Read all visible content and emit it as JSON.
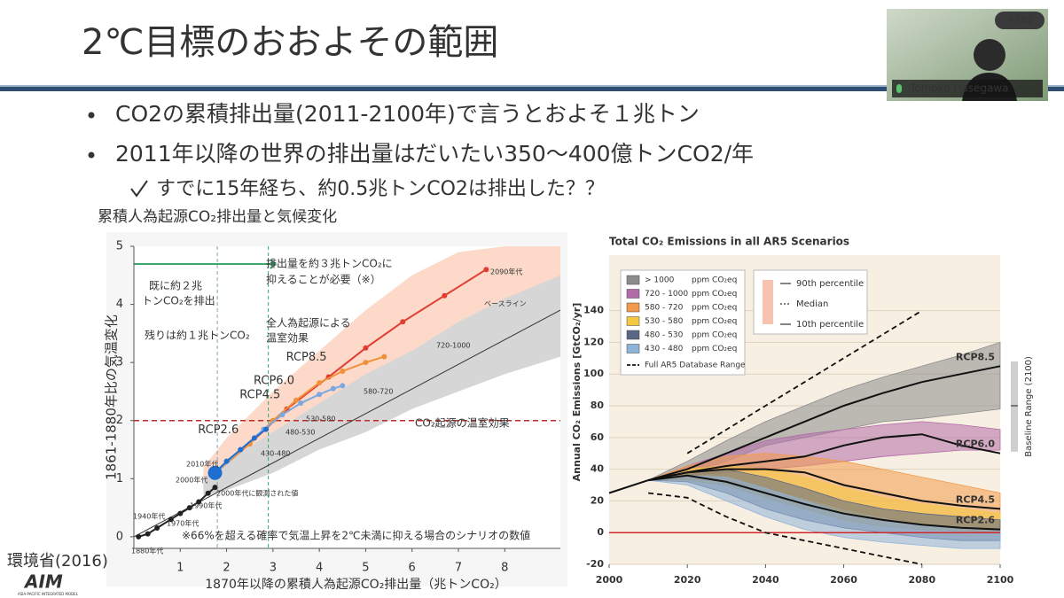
{
  "meeting": {
    "participants": "+381",
    "speaker": "Tomoko Hasegawa"
  },
  "slide": {
    "title": "2℃目標のおおよその範囲",
    "bullets": [
      "CO2の累積排出量(2011-2100年)で言うとおよそ１兆トン",
      "2011年以降の世界の排出量はだいたい350〜400億トンCO2/年"
    ],
    "sub_bullet": "すでに15年経ち、約0.5兆トンCO2は排出した？？",
    "left_caption": "累積人為起源CO₂排出量と気候変化",
    "source": "環境省(2016)",
    "logo": "AIM",
    "logo_sub": "ASIA-PACIFIC INTEGRATED MODEL"
  },
  "chart_data": [
    {
      "type": "line",
      "x_label": "1870年以降の累積人為起源CO₂排出量（兆トンCO₂）",
      "y_label": "1861-1880年比の気温変化",
      "xlim": [
        0,
        9.2
      ],
      "ylim": [
        -0.2,
        5
      ],
      "xticks": [
        1,
        2,
        3,
        4,
        5,
        6,
        7,
        8
      ],
      "yticks": [
        0,
        1,
        2,
        3,
        4,
        5
      ],
      "hline": 2,
      "vlines": [
        1.8,
        2.9
      ],
      "bands": [
        {
          "color": "#fcd9c8",
          "x": [
            1.5,
            2,
            3,
            4,
            5,
            6,
            7,
            8,
            9.2
          ],
          "lower": [
            0.9,
            1.0,
            1.4,
            1.8,
            2.2,
            2.6,
            3.0,
            3.4,
            3.8
          ],
          "upper": [
            1.2,
            1.7,
            2.5,
            3.2,
            3.9,
            4.5,
            4.9,
            5,
            5
          ]
        },
        {
          "color": "#d6d6d6",
          "x": [
            1.5,
            2,
            3,
            4,
            5,
            6,
            7,
            8,
            9.2
          ],
          "lower": [
            0.7,
            0.8,
            1.1,
            1.5,
            1.8,
            2.2,
            2.5,
            2.8,
            3.1
          ],
          "upper": [
            1.0,
            1.3,
            1.8,
            2.3,
            2.8,
            3.2,
            3.7,
            4.1,
            4.5
          ]
        }
      ],
      "series": [
        {
          "color": "#333333",
          "x": [
            0,
            9.2
          ],
          "values": [
            0,
            3.9
          ]
        },
        {
          "color": "#222222",
          "markers": true,
          "x": [
            0.1,
            0.3,
            0.5,
            0.8,
            1.0,
            1.2,
            1.4,
            1.6,
            1.75
          ],
          "values": [
            0,
            0.05,
            0.15,
            0.3,
            0.4,
            0.5,
            0.6,
            0.75,
            0.85
          ]
        },
        {
          "name": "RCP8.5",
          "color": "#e03c31",
          "markers": true,
          "x": [
            1.75,
            2.5,
            3.3,
            4.2,
            5.0,
            5.8,
            6.7,
            7.6
          ],
          "values": [
            1.1,
            1.6,
            2.2,
            2.75,
            3.25,
            3.7,
            4.15,
            4.6
          ]
        },
        {
          "name": "RCP6.0",
          "color": "#f0913a",
          "markers": true,
          "x": [
            1.75,
            2.5,
            3.0,
            3.5,
            4.0,
            4.5,
            5.0,
            5.4
          ],
          "values": [
            1.1,
            1.6,
            2.0,
            2.35,
            2.65,
            2.85,
            3.0,
            3.1
          ]
        },
        {
          "name": "RCP4.5",
          "color": "#7aa8e0",
          "markers": true,
          "x": [
            1.75,
            2.3,
            2.8,
            3.2,
            3.6,
            4.0,
            4.3,
            4.5
          ],
          "values": [
            1.1,
            1.5,
            1.85,
            2.1,
            2.3,
            2.45,
            2.55,
            2.6
          ]
        },
        {
          "name": "RCP2.6",
          "color": "#1f6fd0",
          "markers": true,
          "x": [
            1.75,
            2.0,
            2.3,
            2.6,
            2.85
          ],
          "values": [
            1.1,
            1.3,
            1.5,
            1.7,
            1.85
          ]
        }
      ],
      "annotations": [
        "既に約２兆",
        "トンCO₂を排出",
        "残りは約１兆トンCO₂",
        "排出量を約３兆トンCO₂に",
        "抑えることが必要（※）",
        "全人為起源による",
        "温室効果",
        "CO₂起源の温室効果",
        "※66%を超える確率で気温上昇を2℃未満に抑える場合のシナリオの数値",
        "1880年代",
        "1940年代",
        "1970年代",
        "1990年代",
        "2000年代",
        "2010年代",
        "2000年代に観測された値",
        "ベースライン",
        "2090年代",
        "720-1000",
        "580-720",
        "530-580",
        "480-530",
        "430-480"
      ]
    },
    {
      "type": "line",
      "title": "Total CO₂ Emissions in all AR5 Scenarios",
      "y_label": "Annual CO₂ Emissions [GtCO₂/yr]",
      "x": [
        2000,
        2010,
        2020,
        2030,
        2040,
        2050,
        2060,
        2070,
        2080,
        2090,
        2100
      ],
      "xlim": [
        2000,
        2100
      ],
      "ylim": [
        -20,
        175
      ],
      "xticks": [
        2000,
        2020,
        2040,
        2060,
        2080,
        2100
      ],
      "yticks": [
        -20,
        0,
        20,
        40,
        60,
        80,
        100,
        120,
        140
      ],
      "grid": true,
      "hline": 0,
      "legend_unit": "ppm CO₂eq",
      "bands": [
        {
          "name": "> 1000",
          "color": "#8c8c8c",
          "lower": [
            null,
            33,
            38,
            45,
            55,
            60,
            65,
            70,
            72,
            75,
            78
          ],
          "upper": [
            null,
            33,
            45,
            58,
            70,
            80,
            90,
            98,
            105,
            112,
            120
          ]
        },
        {
          "name": "720 - 1000",
          "color": "#b36ba8",
          "lower": [
            null,
            33,
            36,
            38,
            40,
            42,
            45,
            48,
            50,
            52,
            52
          ],
          "upper": [
            null,
            33,
            42,
            50,
            58,
            62,
            65,
            68,
            70,
            68,
            65
          ]
        },
        {
          "name": "580 - 720",
          "color": "#f29a4a",
          "lower": [
            null,
            33,
            34,
            32,
            28,
            22,
            15,
            10,
            5,
            2,
            0
          ],
          "upper": [
            null,
            33,
            42,
            48,
            50,
            48,
            45,
            40,
            35,
            30,
            25
          ]
        },
        {
          "name": "530 - 580",
          "color": "#f5c842",
          "lower": [
            null,
            33,
            33,
            30,
            22,
            15,
            8,
            4,
            2,
            1,
            0
          ],
          "upper": [
            null,
            33,
            40,
            42,
            40,
            35,
            28,
            22,
            18,
            15,
            12
          ]
        },
        {
          "name": "480 - 530",
          "color": "#5a6784",
          "lower": [
            null,
            33,
            32,
            25,
            15,
            8,
            3,
            0,
            -3,
            -5,
            -5
          ],
          "upper": [
            null,
            33,
            38,
            40,
            35,
            28,
            20,
            15,
            12,
            10,
            8
          ]
        },
        {
          "name": "430 - 480",
          "color": "#8fb3d9",
          "lower": [
            null,
            33,
            30,
            20,
            10,
            2,
            -3,
            -6,
            -8,
            -10,
            -10
          ],
          "upper": [
            null,
            33,
            36,
            35,
            28,
            20,
            12,
            8,
            5,
            3,
            2
          ]
        }
      ],
      "series": [
        {
          "color": "#111111",
          "values": [
            25,
            33,
            null,
            null,
            null,
            null,
            null,
            null,
            null,
            null,
            null
          ]
        },
        {
          "name": "RCP8.5",
          "color": "#111111",
          "values": [
            null,
            33,
            40,
            50,
            60,
            70,
            80,
            88,
            95,
            100,
            105
          ]
        },
        {
          "name": "RCP6.0",
          "color": "#111111",
          "values": [
            null,
            33,
            38,
            42,
            45,
            48,
            55,
            60,
            62,
            55,
            50
          ]
        },
        {
          "name": "RCP4.5",
          "color": "#111111",
          "values": [
            null,
            33,
            38,
            40,
            40,
            38,
            30,
            25,
            20,
            17,
            15
          ]
        },
        {
          "name": "RCP2.6",
          "color": "#111111",
          "values": [
            null,
            33,
            36,
            32,
            25,
            18,
            12,
            8,
            5,
            3,
            2
          ]
        }
      ],
      "full_range": {
        "name": "Full AR5 Database Range",
        "upper": [
          null,
          null,
          50,
          65,
          80,
          95,
          110,
          125,
          140,
          null,
          null
        ],
        "lower": [
          null,
          25,
          22,
          10,
          0,
          -5,
          -10,
          -15,
          -20,
          null,
          null
        ]
      },
      "percentile_legend": [
        "90th percentile",
        "Median",
        "10th percentile"
      ],
      "baseline_range": {
        "label": "Baseline Range (2100)",
        "low": 51,
        "high": 108,
        "median": 80
      }
    }
  ]
}
